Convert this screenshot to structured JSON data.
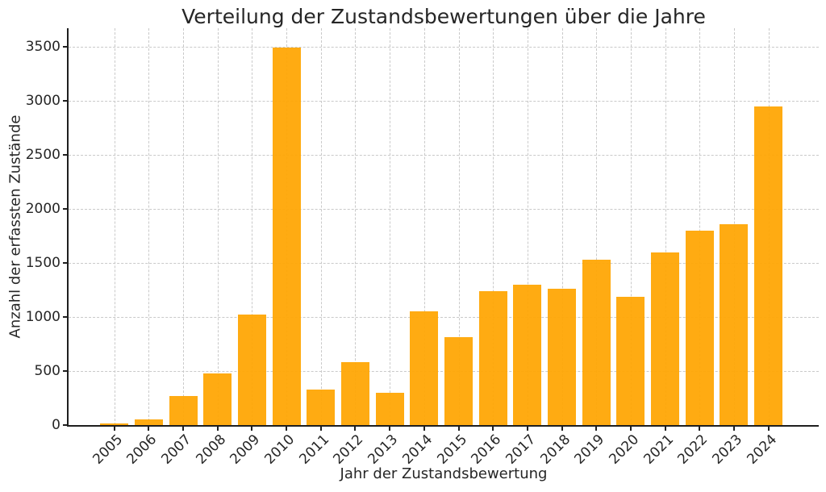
{
  "chart_data": {
    "type": "bar",
    "title": "Verteilung der Zustandsbewertungen über die Jahre",
    "xlabel": "Jahr der Zustandsbewertung",
    "ylabel": "Anzahl der erfassten Zustände",
    "categories": [
      "2005",
      "2006",
      "2007",
      "2008",
      "2009",
      "2010",
      "2011",
      "2012",
      "2013",
      "2014",
      "2015",
      "2016",
      "2017",
      "2018",
      "2019",
      "2020",
      "2021",
      "2022",
      "2023",
      "2024"
    ],
    "values": [
      12,
      50,
      270,
      475,
      1020,
      3490,
      330,
      580,
      300,
      1055,
      815,
      1240,
      1300,
      1260,
      1530,
      1185,
      1600,
      1795,
      1860,
      2945
    ],
    "ylim": [
      0,
      3670
    ],
    "yticks": [
      0,
      500,
      1000,
      1500,
      2000,
      2500,
      3000,
      3500
    ],
    "bar_color": "#ffa605",
    "bar_opacity": 0.95,
    "grid": "both",
    "grid_line_style": "dashed",
    "x_tick_rotation_deg": 45,
    "legend": "none"
  },
  "style": {
    "background": "#ffffff",
    "grid_color": "#c9c9c9",
    "spine_color": "#1f1f1f",
    "text_color": "#262626"
  }
}
